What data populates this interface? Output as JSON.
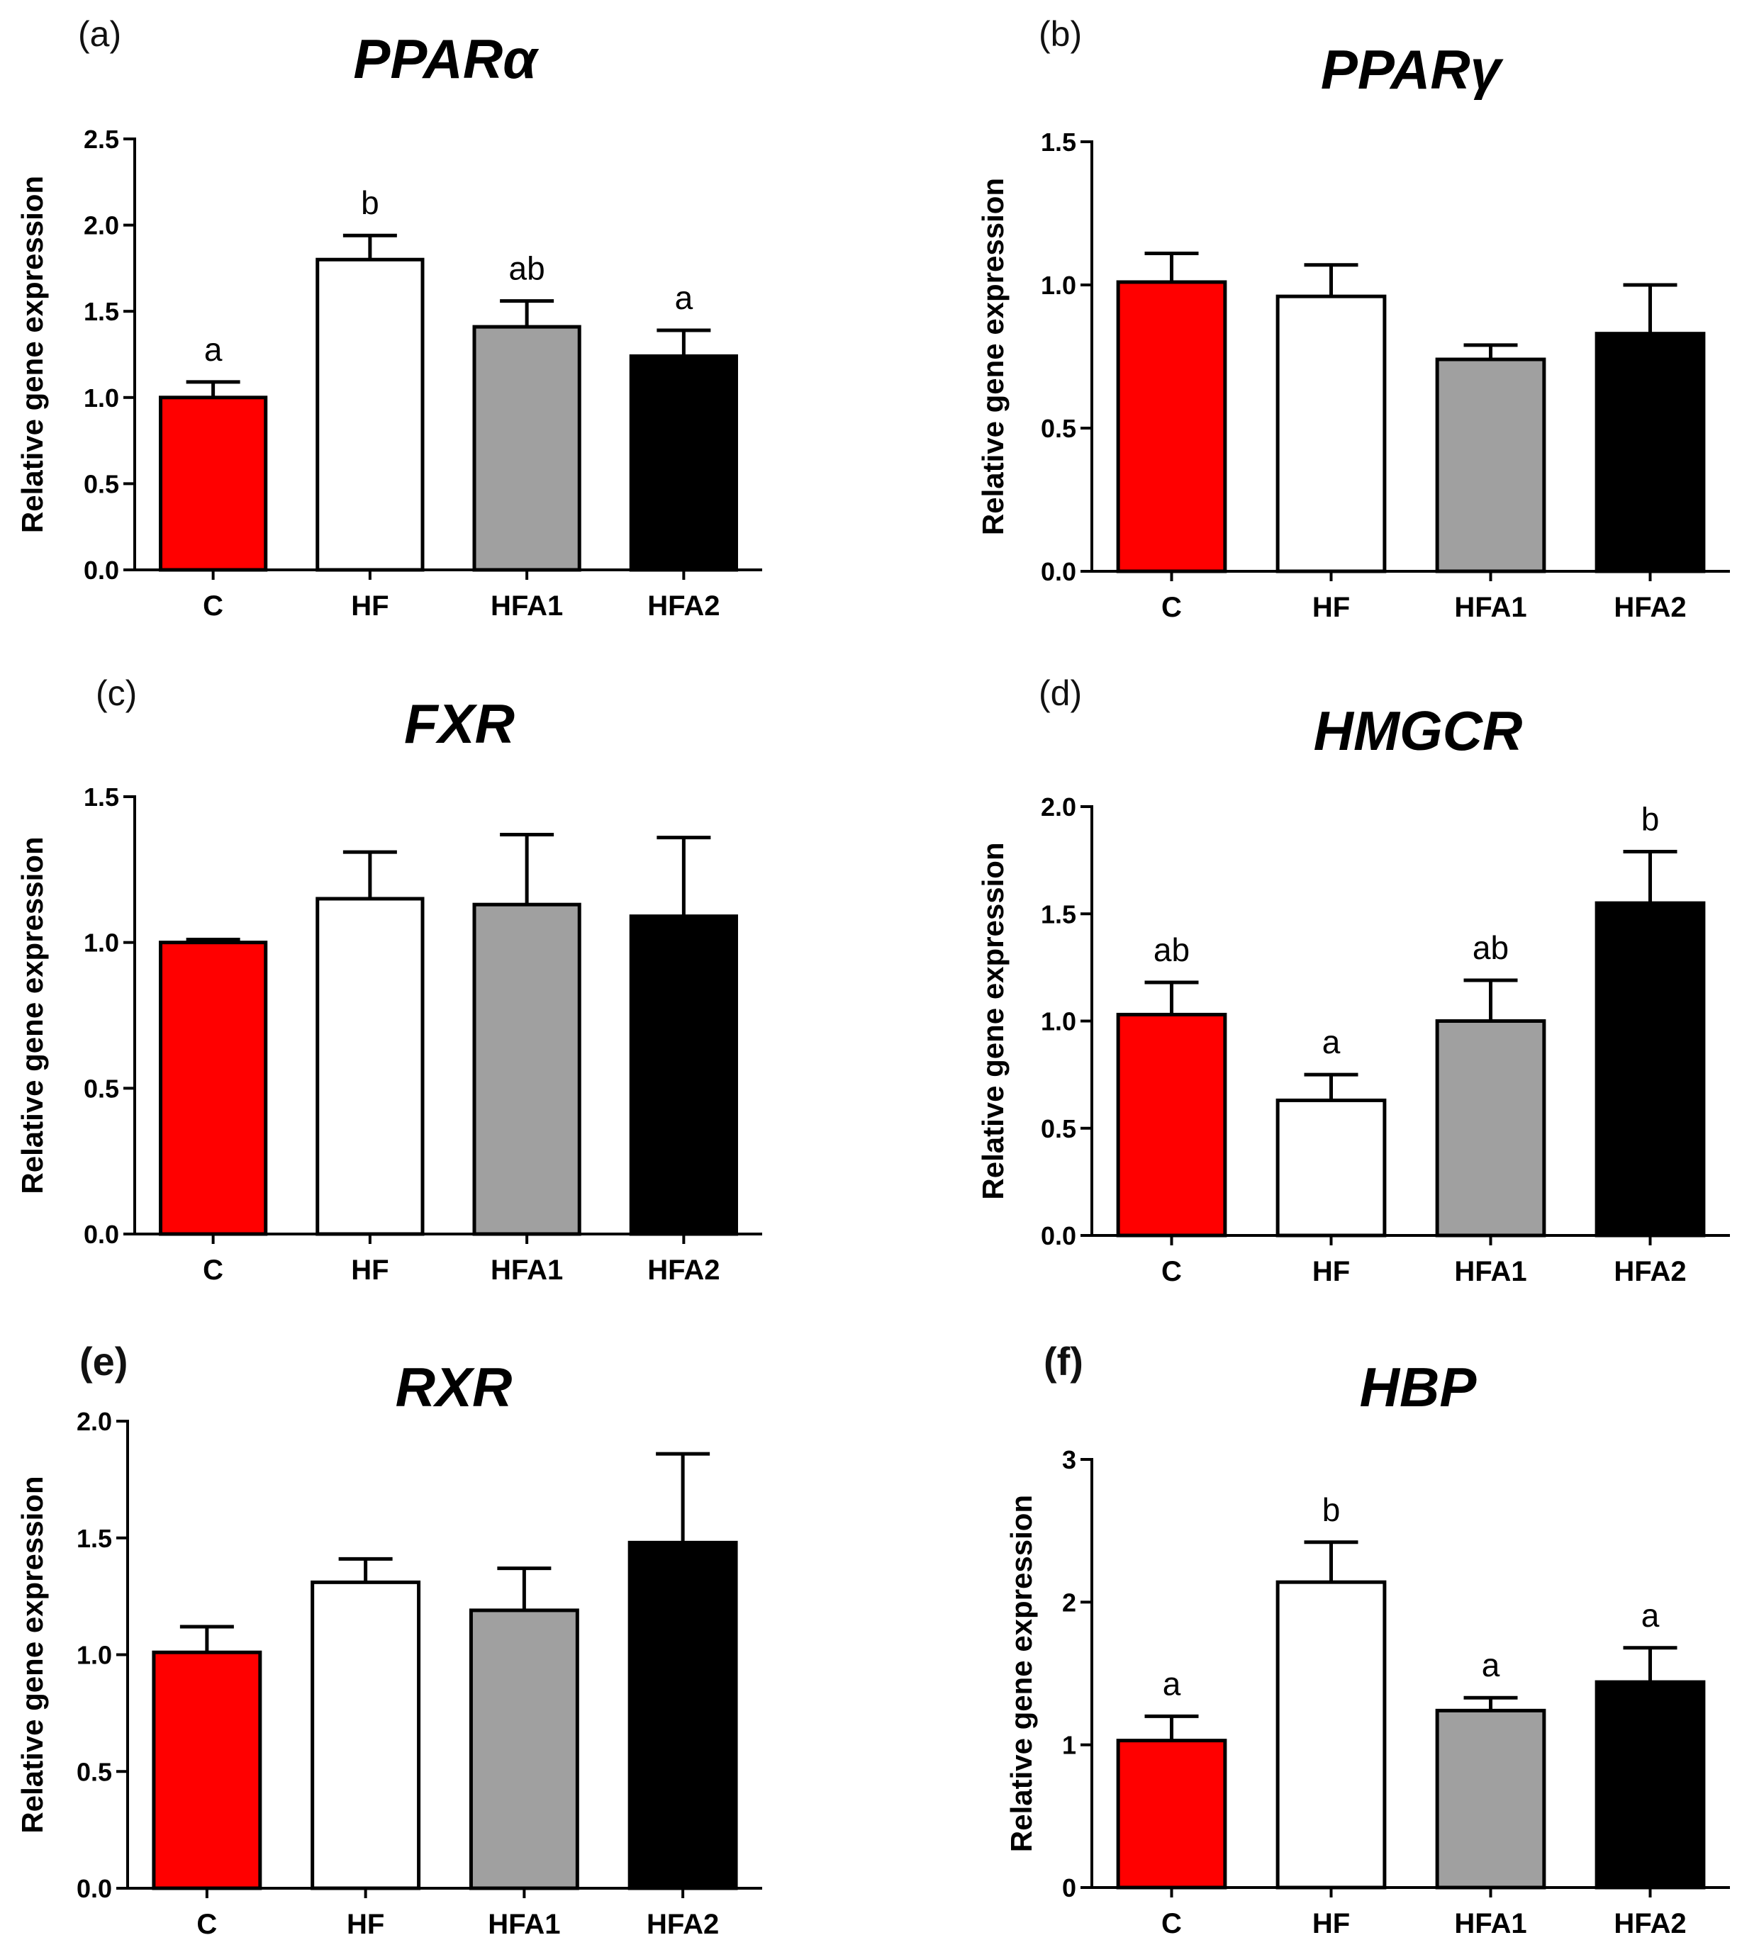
{
  "colors": {
    "C": "#ff0000",
    "HF": "#ffffff",
    "HFA1": "#a0a0a0",
    "HFA2": "#000000",
    "axis": "#000000"
  },
  "chart_data": [
    {
      "type": "bar",
      "panel_label": "(a)",
      "title": "PPARα",
      "ylabel": "Relative gene expression",
      "categories": [
        "C",
        "HF",
        "HFA1",
        "HFA2"
      ],
      "values": [
        1.0,
        1.8,
        1.41,
        1.24
      ],
      "errors": [
        0.09,
        0.14,
        0.15,
        0.15
      ],
      "significance": [
        "a",
        "b",
        "ab",
        "a"
      ],
      "ylim": [
        0,
        2.5
      ],
      "yticks": [
        0.0,
        0.5,
        1.0,
        1.5,
        2.0,
        2.5
      ],
      "ytick_labels": [
        "0.0",
        "0.5",
        "1.0",
        "1.5",
        "2.0",
        "2.5"
      ]
    },
    {
      "type": "bar",
      "panel_label": "(b)",
      "title": "PPARγ",
      "ylabel": "Relative gene expression",
      "categories": [
        "C",
        "HF",
        "HFA1",
        "HFA2"
      ],
      "values": [
        1.01,
        0.96,
        0.74,
        0.83
      ],
      "errors": [
        0.1,
        0.11,
        0.05,
        0.17
      ],
      "significance": [
        "",
        "",
        "",
        ""
      ],
      "ylim": [
        0,
        1.5
      ],
      "yticks": [
        0.0,
        0.5,
        1.0,
        1.5
      ],
      "ytick_labels": [
        "0.0",
        "0.5",
        "1.0",
        "1.5"
      ]
    },
    {
      "type": "bar",
      "panel_label": "(c)",
      "title": "FXR",
      "ylabel": "Relative gene expression",
      "categories": [
        "C",
        "HF",
        "HFA1",
        "HFA2"
      ],
      "values": [
        1.0,
        1.15,
        1.13,
        1.09
      ],
      "errors": [
        0.01,
        0.16,
        0.24,
        0.27
      ],
      "significance": [
        "",
        "",
        "",
        ""
      ],
      "ylim": [
        0,
        1.5
      ],
      "yticks": [
        0.0,
        0.5,
        1.0,
        1.5
      ],
      "ytick_labels": [
        "0.0",
        "0.5",
        "1.0",
        "1.5"
      ]
    },
    {
      "type": "bar",
      "panel_label": "(d)",
      "title": "HMGCR",
      "ylabel": "Relative gene expression",
      "categories": [
        "C",
        "HF",
        "HFA1",
        "HFA2"
      ],
      "values": [
        1.03,
        0.63,
        1.0,
        1.55
      ],
      "errors": [
        0.15,
        0.12,
        0.19,
        0.24
      ],
      "significance": [
        "ab",
        "a",
        "ab",
        "b"
      ],
      "ylim": [
        0,
        2.0
      ],
      "yticks": [
        0.0,
        0.5,
        1.0,
        1.5,
        2.0
      ],
      "ytick_labels": [
        "0.0",
        "0.5",
        "1.0",
        "1.5",
        "2.0"
      ]
    },
    {
      "type": "bar",
      "panel_label": "(e)",
      "title": "RXR",
      "ylabel": "Relative gene expression",
      "categories": [
        "C",
        "HF",
        "HFA1",
        "HFA2"
      ],
      "values": [
        1.01,
        1.31,
        1.19,
        1.48
      ],
      "errors": [
        0.11,
        0.1,
        0.18,
        0.38
      ],
      "significance": [
        "",
        "",
        "",
        ""
      ],
      "ylim": [
        0,
        2.0
      ],
      "yticks": [
        0.0,
        0.5,
        1.0,
        1.5,
        2.0
      ],
      "ytick_labels": [
        "0.0",
        "0.5",
        "1.0",
        "1.5",
        "2.0"
      ]
    },
    {
      "type": "bar",
      "panel_label": "(f)",
      "title": "HBP",
      "ylabel": "Relative gene expression",
      "categories": [
        "C",
        "HF",
        "HFA1",
        "HFA2"
      ],
      "values": [
        1.03,
        2.14,
        1.24,
        1.44
      ],
      "errors": [
        0.17,
        0.28,
        0.09,
        0.24
      ],
      "significance": [
        "a",
        "b",
        "a",
        "a"
      ],
      "ylim": [
        0,
        3
      ],
      "yticks": [
        0,
        1,
        2,
        3
      ],
      "ytick_labels": [
        "0",
        "1",
        "2",
        "3"
      ]
    }
  ]
}
